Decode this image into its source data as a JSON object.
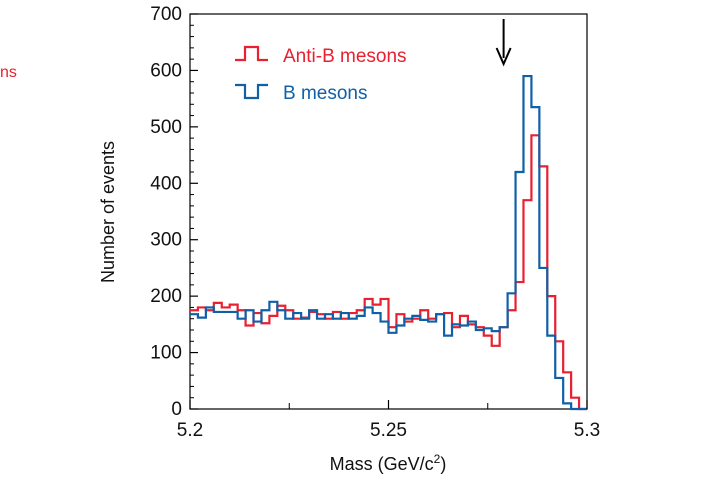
{
  "colors": {
    "anti_b": "#e8202f",
    "b": "#1060a8",
    "axis": "#000000",
    "arrow": "#000000"
  },
  "clipped_text": "ns",
  "chart_data": {
    "type": "histogram-step",
    "title": "",
    "xlabel": "Mass (GeV/c",
    "xlabel_sup": "2",
    "xlabel_close": ")",
    "ylabel": "Number of events",
    "xlim": [
      5.2,
      5.3
    ],
    "ylim": [
      0,
      700
    ],
    "x_ticks": [
      5.2,
      5.25,
      5.3
    ],
    "x_tick_labels": [
      "5.2",
      "5.25",
      "5.3"
    ],
    "y_ticks": [
      0,
      100,
      200,
      300,
      400,
      500,
      600,
      700
    ],
    "y_tick_labels": [
      "0",
      "100",
      "200",
      "300",
      "400",
      "500",
      "600",
      "700"
    ],
    "bin_edges_start": 5.2,
    "bin_width": 0.002,
    "legend_placement": "top-left",
    "arrow_annotation_x": 5.28,
    "series": [
      {
        "name": "Anti-B mesons",
        "color_key": "anti_b",
        "values": [
          175,
          180,
          175,
          188,
          180,
          185,
          175,
          148,
          170,
          152,
          165,
          183,
          175,
          160,
          162,
          172,
          168,
          160,
          172,
          160,
          170,
          175,
          195,
          185,
          195,
          145,
          168,
          155,
          160,
          175,
          160,
          168,
          170,
          145,
          165,
          150,
          145,
          130,
          112,
          145,
          175,
          225,
          370,
          485,
          430,
          200,
          120,
          65,
          20,
          0
        ]
      },
      {
        "name": "B mesons",
        "color_key": "b",
        "values": [
          168,
          162,
          180,
          172,
          172,
          172,
          160,
          175,
          155,
          175,
          190,
          175,
          160,
          170,
          160,
          175,
          160,
          168,
          160,
          170,
          160,
          165,
          180,
          170,
          155,
          135,
          148,
          160,
          165,
          158,
          155,
          168,
          130,
          150,
          148,
          155,
          140,
          143,
          138,
          145,
          205,
          420,
          590,
          535,
          250,
          130,
          55,
          10,
          0,
          0
        ]
      }
    ]
  }
}
